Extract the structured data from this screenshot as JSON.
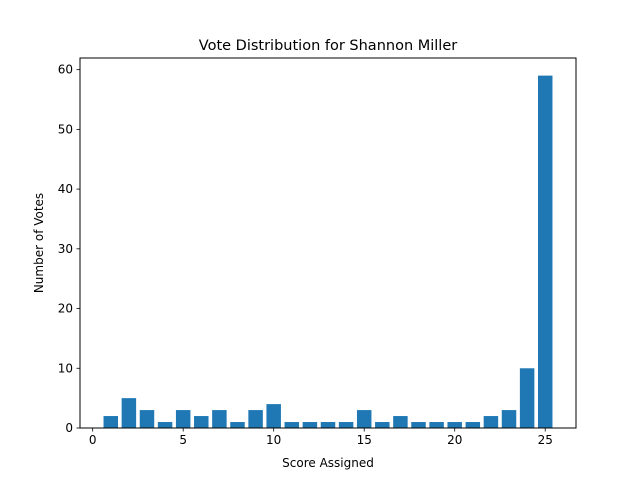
{
  "chart_data": {
    "type": "bar",
    "title": "Vote Distribution for Shannon Miller",
    "xlabel": "Score Assigned",
    "ylabel": "Number of Votes",
    "x": [
      1,
      2,
      3,
      4,
      5,
      6,
      7,
      8,
      9,
      10,
      11,
      12,
      13,
      14,
      15,
      16,
      17,
      18,
      19,
      20,
      21,
      22,
      23,
      24,
      25
    ],
    "values": [
      2,
      5,
      3,
      1,
      3,
      2,
      3,
      1,
      3,
      4,
      1,
      1,
      1,
      1,
      3,
      1,
      2,
      1,
      1,
      1,
      1,
      2,
      3,
      10,
      59
    ],
    "xlim": [
      -0.7,
      26.7
    ],
    "ylim": [
      0,
      61.95
    ],
    "xticks": [
      0,
      5,
      10,
      15,
      20,
      25
    ],
    "yticks": [
      0,
      10,
      20,
      30,
      40,
      50,
      60
    ],
    "bar_width": 0.8,
    "grid": false,
    "bar_color": "#1f77b4"
  }
}
